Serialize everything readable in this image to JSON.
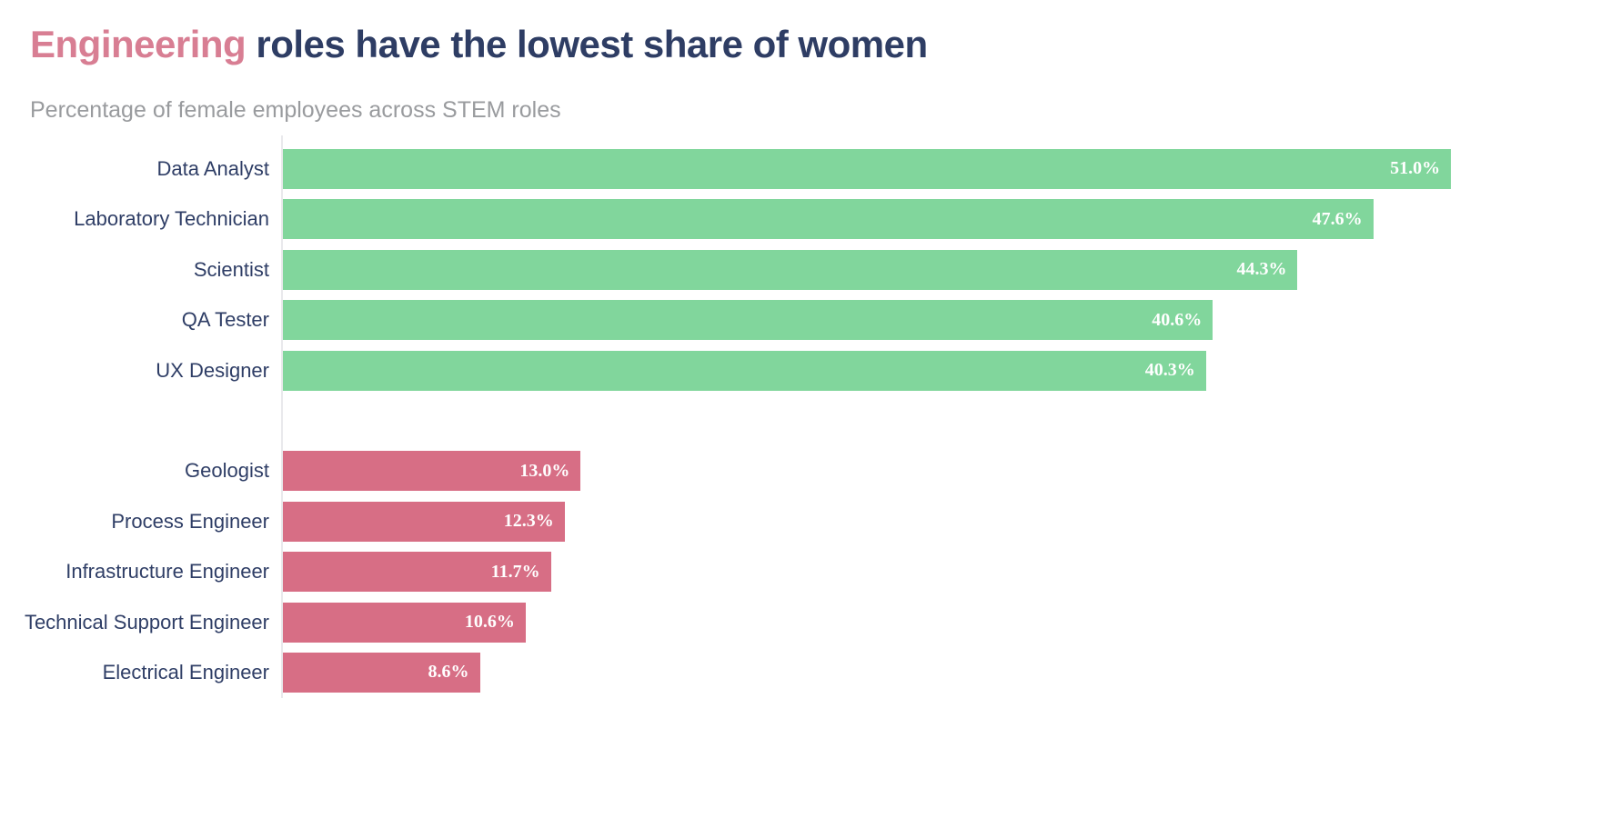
{
  "header": {
    "title_accent": "Engineering",
    "title_rest": " roles have the lowest share of women",
    "subtitle": "Percentage of female employees across STEM roles"
  },
  "colors": {
    "title_accent_pink": "#d87e93",
    "title_navy": "#2e3d64",
    "subtitle_gray": "#999b9e",
    "category_label_navy": "#2f3e66",
    "bar_green": "#81d69c",
    "bar_rose": "#d76e85",
    "value_label_white": "#ffffff",
    "axis_spine_gray": "#e9e9ec",
    "background": "#ffffff"
  },
  "chart_data": {
    "type": "bar",
    "orientation": "horizontal",
    "title": "Engineering roles have the lowest share of women",
    "title_highlight_word": "Engineering",
    "subtitle": "Percentage of female employees across STEM roles",
    "value_unit": "%",
    "xlim": [
      0,
      51.0
    ],
    "grid": false,
    "legend": false,
    "bar_label_position": "inside-end",
    "groups": [
      {
        "id": "non_engineering",
        "color": "#81d69c"
      },
      {
        "id": "engineering",
        "color": "#d76e85"
      }
    ],
    "rows": [
      {
        "label": "Data Analyst",
        "value": 51.0,
        "display": "51.0%",
        "group": "non_engineering"
      },
      {
        "label": "Laboratory Technician",
        "value": 47.6,
        "display": "47.6%",
        "group": "non_engineering"
      },
      {
        "label": "Scientist",
        "value": 44.3,
        "display": "44.3%",
        "group": "non_engineering"
      },
      {
        "label": "QA Tester",
        "value": 40.6,
        "display": "40.6%",
        "group": "non_engineering"
      },
      {
        "label": "UX Designer",
        "value": 40.3,
        "display": "40.3%",
        "group": "non_engineering"
      },
      {
        "gap": true
      },
      {
        "label": "Geologist",
        "value": 13.0,
        "display": "13.0%",
        "group": "engineering"
      },
      {
        "label": "Process Engineer",
        "value": 12.3,
        "display": "12.3%",
        "group": "engineering"
      },
      {
        "label": "Infrastructure Engineer",
        "value": 11.7,
        "display": "11.7%",
        "group": "engineering"
      },
      {
        "label": "Technical Support Engineer",
        "value": 10.6,
        "display": "10.6%",
        "group": "engineering"
      },
      {
        "label": "Electrical Engineer",
        "value": 8.6,
        "display": "8.6%",
        "group": "engineering"
      }
    ]
  }
}
